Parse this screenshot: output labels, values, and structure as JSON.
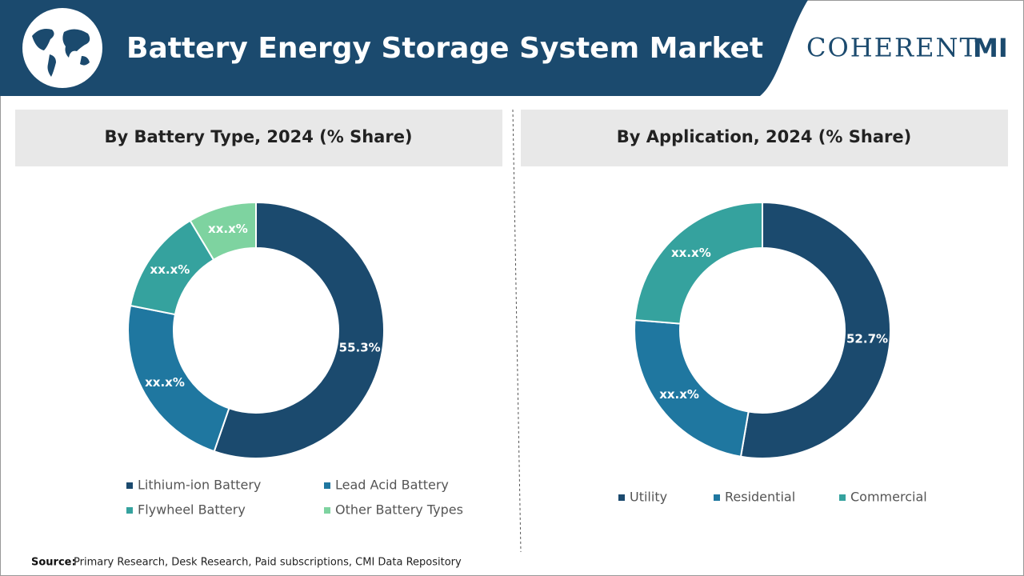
{
  "header": {
    "title": "Battery Energy Storage System Market",
    "logo_text": "COHERENT",
    "logo_mark": "MI"
  },
  "source": {
    "label": "Source:",
    "text": "Primary Research, Desk Research, Paid subscriptions, CMI Data Repository"
  },
  "chart_data": [
    {
      "type": "pie",
      "donut": true,
      "title": "By Battery Type, 2024 (% Share)",
      "categories": [
        "Lithium-ion Battery",
        "Lead Acid Battery",
        "Flywheel Battery",
        "Other Battery Types"
      ],
      "values": [
        55.3,
        22.8,
        13.3,
        8.6
      ],
      "value_labels": [
        "55.3%",
        "xx.x%",
        "xx.x%",
        "xx.x%"
      ],
      "colors": [
        "#1b4a6e",
        "#1f77a0",
        "#35a29e",
        "#7ed3a0"
      ]
    },
    {
      "type": "pie",
      "donut": true,
      "title": "By Application, 2024 (% Share)",
      "categories": [
        "Utility",
        "Residential",
        "Commercial"
      ],
      "values": [
        52.7,
        23.6,
        23.7
      ],
      "value_labels": [
        "52.7%",
        "xx.x%",
        "xx.x%"
      ],
      "colors": [
        "#1b4a6e",
        "#1f77a0",
        "#35a29e"
      ]
    }
  ]
}
